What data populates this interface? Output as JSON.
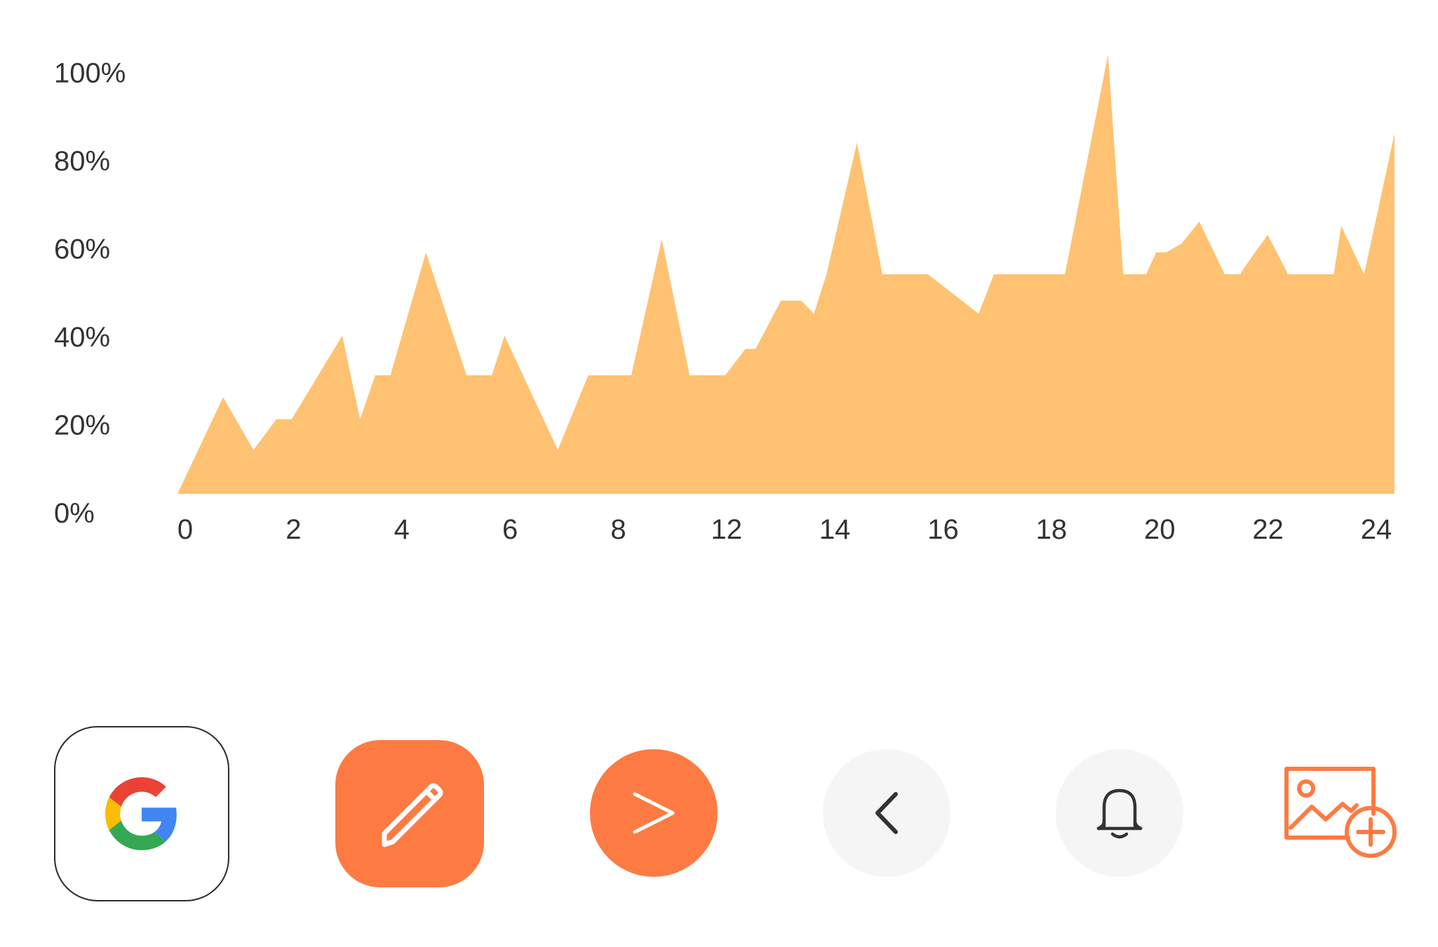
{
  "chart_data": {
    "type": "area",
    "color": "#fec272",
    "xlim": [
      0,
      24
    ],
    "ylim": [
      0,
      100
    ],
    "x_ticks": [
      "0",
      "2",
      "4",
      "6",
      "8",
      "12",
      "14",
      "16",
      "18",
      "20",
      "22",
      "24"
    ],
    "y_ticks": [
      "0%",
      "20%",
      "40%",
      "60%",
      "80%",
      "100%"
    ],
    "x": [
      0,
      0.9,
      1.5,
      1.95,
      2.25,
      3.25,
      3.6,
      3.9,
      4.2,
      4.9,
      5.7,
      6.2,
      6.45,
      7.5,
      8.1,
      8.95,
      9.55,
      10.1,
      10.8,
      11.2,
      11.4,
      11.9,
      12.3,
      12.55,
      12.8,
      13.4,
      13.9,
      14.8,
      15.8,
      16.1,
      16.9,
      17.5,
      18.35,
      18.65,
      19.1,
      19.3,
      19.5,
      19.8,
      20.15,
      20.4,
      20.65,
      20.85,
      20.95,
      21.25,
      21.5,
      21.9,
      22.3,
      22.8,
      22.95,
      23.4,
      24
    ],
    "y": [
      0,
      22,
      10,
      17,
      17,
      36,
      17,
      27,
      27,
      55,
      27,
      27,
      36,
      10,
      27,
      27,
      58,
      27,
      27,
      33,
      33,
      44,
      44,
      41,
      50,
      80,
      50,
      50,
      41,
      50,
      50,
      50,
      100,
      50,
      50,
      55,
      55,
      57,
      62,
      56,
      50,
      50,
      50,
      55,
      59,
      50,
      50,
      50,
      61,
      50,
      82
    ]
  },
  "buttons": [
    {
      "name": "google-button",
      "icon": "google-g-icon"
    },
    {
      "name": "edit-button",
      "icon": "pencil-icon",
      "color": "#fd7b43"
    },
    {
      "name": "next-button",
      "icon": "chevron-right-icon",
      "color": "#fd7b43"
    },
    {
      "name": "back-button",
      "icon": "chevron-left-icon",
      "color": "#f5f5f5"
    },
    {
      "name": "notifications-button",
      "icon": "bell-icon",
      "color": "#f5f5f5"
    },
    {
      "name": "add-image-button",
      "icon": "image-add-icon",
      "color": "#fd7b43"
    }
  ]
}
